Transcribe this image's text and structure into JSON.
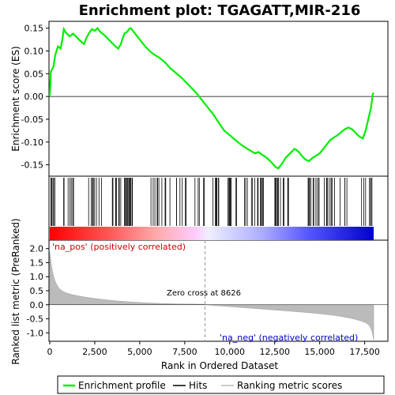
{
  "chart_data": {
    "type": "line",
    "title": "Enrichment plot: TGAGATT,MIR-216",
    "xlabel": "Rank in Ordered Dataset",
    "ylabel_top": "Enrichment score (ES)",
    "ylabel_bottom": "Ranked list metric (PreRanked)",
    "xlim": [
      0,
      18000
    ],
    "es_ylim": [
      -0.175,
      0.165
    ],
    "metric_ylim": [
      -1.3,
      2.3
    ],
    "x_ticks": [
      0,
      2500,
      5000,
      7500,
      10000,
      12500,
      15000,
      17500
    ],
    "x_tick_labels": [
      "0",
      "2,500",
      "5,000",
      "7,500",
      "10,000",
      "12,500",
      "15,000",
      "17,500"
    ],
    "es_ticks": [
      0.15,
      0.1,
      0.05,
      0.0,
      -0.05,
      -0.1,
      -0.15
    ],
    "es_tick_labels": [
      "0.15",
      "0.10",
      "0.05",
      "0.00",
      "-0.05",
      "-0.10",
      "-0.15"
    ],
    "metric_ticks": [
      2.0,
      1.5,
      1.0,
      0.5,
      0.0,
      -0.5,
      -1.0
    ],
    "metric_tick_labels": [
      "2.0",
      "1.5",
      "1.0",
      "0.5",
      "0.0",
      "-0.5",
      "-1.0"
    ],
    "es_profile": {
      "x": [
        0,
        60,
        200,
        300,
        450,
        600,
        700,
        780,
        900,
        1100,
        1300,
        1500,
        1700,
        1900,
        2050,
        2200,
        2350,
        2500,
        2650,
        2800,
        3000,
        3200,
        3400,
        3600,
        3800,
        3950,
        4050,
        4150,
        4300,
        4400,
        4500,
        4700,
        5000,
        5300,
        5600,
        5800,
        6100,
        6400,
        6700,
        7000,
        7300,
        7600,
        7900,
        8200,
        8500,
        8800,
        9100,
        9400,
        9700,
        10000,
        10300,
        10600,
        10900,
        11200,
        11400,
        11600,
        11800,
        12000,
        12200,
        12400,
        12550,
        12700,
        12900,
        13100,
        13350,
        13600,
        13800,
        14000,
        14200,
        14400,
        14600,
        14800,
        15000,
        15200,
        15400,
        15600,
        15800,
        16000,
        16200,
        16400,
        16600,
        16800,
        17000,
        17200,
        17400,
        17550,
        17700,
        17850,
        17950,
        18000
      ],
      "y": [
        0.0,
        0.055,
        0.065,
        0.09,
        0.11,
        0.105,
        0.125,
        0.148,
        0.14,
        0.132,
        0.138,
        0.13,
        0.122,
        0.115,
        0.13,
        0.14,
        0.148,
        0.144,
        0.15,
        0.142,
        0.136,
        0.128,
        0.12,
        0.112,
        0.105,
        0.115,
        0.128,
        0.138,
        0.142,
        0.148,
        0.15,
        0.14,
        0.125,
        0.11,
        0.098,
        0.092,
        0.085,
        0.075,
        0.062,
        0.052,
        0.042,
        0.03,
        0.018,
        0.005,
        -0.01,
        -0.025,
        -0.04,
        -0.058,
        -0.075,
        -0.085,
        -0.095,
        -0.105,
        -0.113,
        -0.12,
        -0.125,
        -0.122,
        -0.128,
        -0.133,
        -0.14,
        -0.148,
        -0.155,
        -0.158,
        -0.148,
        -0.135,
        -0.125,
        -0.115,
        -0.12,
        -0.13,
        -0.138,
        -0.142,
        -0.135,
        -0.13,
        -0.125,
        -0.115,
        -0.105,
        -0.095,
        -0.09,
        -0.085,
        -0.078,
        -0.072,
        -0.068,
        -0.072,
        -0.08,
        -0.088,
        -0.092,
        -0.075,
        -0.05,
        -0.025,
        0.005,
        0.008
      ]
    },
    "zero_cross_label": "Zero cross at 8626",
    "zero_cross_x": 8626,
    "pos_label": "'na_pos' (positively correlated)",
    "neg_label": "'na_neg' (negatively correlated)",
    "legend": [
      {
        "label": "Enrichment profile",
        "color": "#00ee00"
      },
      {
        "label": "Hits",
        "color": "#000000"
      },
      {
        "label": "Ranking metric scores",
        "color": "#bbbbbb"
      }
    ],
    "colors": {
      "profile": "#00ee00",
      "hits": "#000000",
      "metric_fill": "#bbbbbb",
      "pos_text": "#cc0000",
      "neg_text": "#0000cc",
      "zero_line": "#999999"
    }
  }
}
